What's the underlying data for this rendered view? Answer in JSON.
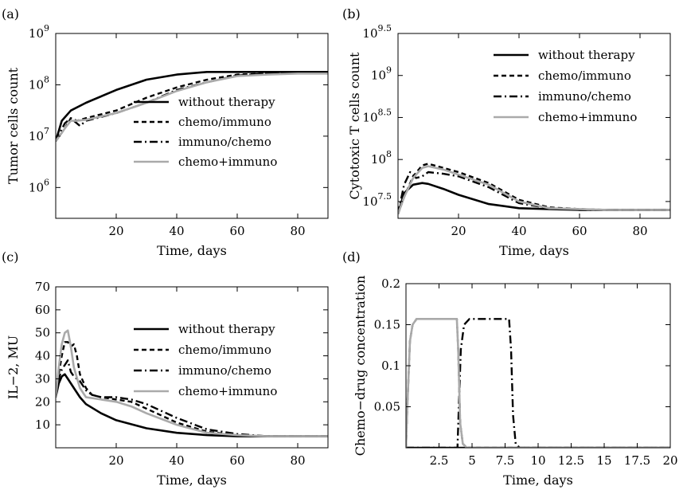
{
  "series_styles": [
    {
      "key": "without",
      "color": "#000000",
      "dash": "",
      "width": 2.6
    },
    {
      "key": "chemo_immuno",
      "color": "#000000",
      "dash": "6,4",
      "width": 2.4
    },
    {
      "key": "immuno_chemo",
      "color": "#000000",
      "dash": "10,4,2,4",
      "width": 2.4
    },
    {
      "key": "chemo_plus_immuno",
      "color": "#aaaaaa",
      "dash": "",
      "width": 2.6
    }
  ],
  "chart_data": [
    {
      "panel_label": "(a)",
      "type": "line",
      "yscale": "log",
      "xlabel": "Time, days",
      "ylabel": "Tumor cells count",
      "xlim": [
        0,
        90
      ],
      "ylim_log10": [
        5.4,
        9
      ],
      "xticks": [
        {
          "v": 20,
          "label": "20"
        },
        {
          "v": 40,
          "label": "40"
        },
        {
          "v": 60,
          "label": "60"
        },
        {
          "v": 80,
          "label": "80"
        }
      ],
      "yticks": [
        {
          "v": 6,
          "base": "10",
          "exp": "6"
        },
        {
          "v": 7,
          "base": "10",
          "exp": "7"
        },
        {
          "v": 8,
          "base": "10",
          "exp": "8"
        },
        {
          "v": 9,
          "base": "10",
          "exp": "9"
        }
      ],
      "legend": [
        "without therapy",
        "chemo/immuno",
        "immuno/chemo",
        "chemo+immuno"
      ],
      "legend_position": "bottom-right",
      "series": [
        {
          "name": "without therapy",
          "x": [
            0,
            2,
            5,
            10,
            20,
            30,
            40,
            50,
            60,
            70,
            80,
            90
          ],
          "y_log10": [
            6.9,
            7.3,
            7.5,
            7.65,
            7.9,
            8.1,
            8.2,
            8.25,
            8.25,
            8.25,
            8.25,
            8.25
          ]
        },
        {
          "name": "chemo/immuno",
          "x": [
            0,
            3,
            5,
            7,
            10,
            20,
            30,
            40,
            50,
            60,
            70,
            80,
            90
          ],
          "y_log10": [
            6.9,
            7.15,
            7.35,
            7.3,
            7.35,
            7.5,
            7.75,
            7.95,
            8.1,
            8.2,
            8.22,
            8.22,
            8.22
          ]
        },
        {
          "name": "immuno/chemo",
          "x": [
            0,
            3,
            5,
            7,
            8,
            10,
            20,
            30,
            40,
            50,
            60,
            70,
            80,
            90
          ],
          "y_log10": [
            6.9,
            7.25,
            7.35,
            7.25,
            7.2,
            7.3,
            7.45,
            7.65,
            7.9,
            8.05,
            8.18,
            8.22,
            8.22,
            8.22
          ]
        },
        {
          "name": "chemo+immuno",
          "x": [
            0,
            3,
            5,
            7,
            10,
            20,
            30,
            40,
            50,
            60,
            70,
            80,
            90
          ],
          "y_log10": [
            6.9,
            7.15,
            7.3,
            7.3,
            7.32,
            7.45,
            7.65,
            7.88,
            8.05,
            8.17,
            8.2,
            8.22,
            8.22
          ]
        }
      ]
    },
    {
      "panel_label": "(b)",
      "type": "line",
      "yscale": "log",
      "xlabel": "Time, days",
      "ylabel": "Cytotoxic T cells count",
      "xlim": [
        0,
        90
      ],
      "ylim_log10": [
        7.3,
        9.5
      ],
      "xticks": [
        {
          "v": 20,
          "label": "20"
        },
        {
          "v": 40,
          "label": "40"
        },
        {
          "v": 60,
          "label": "60"
        },
        {
          "v": 80,
          "label": "80"
        }
      ],
      "yticks": [
        {
          "v": 7.5,
          "base": "10",
          "exp": "7.5"
        },
        {
          "v": 8,
          "base": "10",
          "exp": "8"
        },
        {
          "v": 8.5,
          "base": "10",
          "exp": "8.5"
        },
        {
          "v": 9,
          "base": "10",
          "exp": "9"
        },
        {
          "v": 9.5,
          "base": "10",
          "exp": "9.5"
        }
      ],
      "legend": [
        "without therapy",
        "chemo/immuno",
        "immuno/chemo",
        "chemo+immuno"
      ],
      "legend_position": "top-right",
      "series": [
        {
          "name": "without therapy",
          "x": [
            0,
            2,
            5,
            8,
            10,
            15,
            20,
            30,
            40,
            50,
            60,
            70,
            80,
            90
          ],
          "y_log10": [
            7.35,
            7.6,
            7.7,
            7.72,
            7.71,
            7.65,
            7.58,
            7.47,
            7.42,
            7.41,
            7.4,
            7.4,
            7.4,
            7.4
          ]
        },
        {
          "name": "chemo/immuno",
          "x": [
            0,
            2,
            5,
            8,
            10,
            15,
            20,
            30,
            40,
            50,
            60,
            70,
            80,
            90
          ],
          "y_log10": [
            7.35,
            7.55,
            7.8,
            7.93,
            7.95,
            7.9,
            7.85,
            7.72,
            7.52,
            7.43,
            7.41,
            7.4,
            7.4,
            7.4
          ]
        },
        {
          "name": "immuno/chemo",
          "x": [
            0,
            2,
            4,
            6,
            8,
            10,
            15,
            20,
            30,
            40,
            50,
            60,
            70,
            80,
            90
          ],
          "y_log10": [
            7.35,
            7.7,
            7.85,
            7.78,
            7.8,
            7.85,
            7.83,
            7.8,
            7.67,
            7.48,
            7.42,
            7.4,
            7.4,
            7.4,
            7.4
          ]
        },
        {
          "name": "chemo+immuno",
          "x": [
            0,
            2,
            5,
            8,
            10,
            15,
            20,
            30,
            40,
            50,
            60,
            70,
            80,
            90
          ],
          "y_log10": [
            7.35,
            7.55,
            7.78,
            7.9,
            7.92,
            7.88,
            7.82,
            7.7,
            7.5,
            7.42,
            7.41,
            7.4,
            7.4,
            7.4
          ]
        }
      ]
    },
    {
      "panel_label": "(c)",
      "type": "line",
      "yscale": "linear",
      "xlabel": "Time, days",
      "ylabel": "IL−2, MU",
      "xlim": [
        0,
        90
      ],
      "ylim": [
        0,
        70
      ],
      "xticks": [
        {
          "v": 20,
          "label": "20"
        },
        {
          "v": 40,
          "label": "40"
        },
        {
          "v": 60,
          "label": "60"
        },
        {
          "v": 80,
          "label": "80"
        }
      ],
      "yticks": [
        {
          "v": 10,
          "label": "10"
        },
        {
          "v": 20,
          "label": "20"
        },
        {
          "v": 30,
          "label": "30"
        },
        {
          "v": 40,
          "label": "40"
        },
        {
          "v": 50,
          "label": "50"
        },
        {
          "v": 60,
          "label": "60"
        },
        {
          "v": 70,
          "label": "70"
        }
      ],
      "legend": [
        "without therapy",
        "chemo/immuno",
        "immuno/chemo",
        "chemo+immuno"
      ],
      "legend_position": "right",
      "series": [
        {
          "name": "without therapy",
          "x": [
            0,
            1,
            2,
            3,
            4,
            6,
            8,
            10,
            15,
            20,
            30,
            40,
            50,
            60,
            70,
            80,
            90
          ],
          "y": [
            22,
            28,
            31,
            32,
            30,
            26,
            22,
            19,
            15,
            12,
            8.5,
            6.5,
            5.5,
            5,
            5,
            5,
            5
          ]
        },
        {
          "name": "chemo/immuno",
          "x": [
            0,
            1,
            2,
            3,
            4,
            5,
            6,
            7,
            8,
            10,
            12,
            15,
            20,
            25,
            30,
            40,
            50,
            60,
            70,
            80,
            90
          ],
          "y": [
            22,
            32,
            40,
            46,
            46,
            44,
            45,
            40,
            32,
            26,
            23,
            22,
            21,
            20,
            17,
            11,
            7,
            5.5,
            5,
            5,
            5
          ]
        },
        {
          "name": "immuno/chemo",
          "x": [
            0,
            1,
            2,
            3,
            4,
            5,
            6,
            8,
            10,
            12,
            15,
            20,
            25,
            30,
            40,
            50,
            60,
            70,
            80,
            90
          ],
          "y": [
            22,
            30,
            34,
            36,
            38,
            33,
            31,
            29,
            25,
            23,
            22,
            22,
            21,
            19,
            13,
            8,
            6,
            5,
            5,
            5
          ]
        },
        {
          "name": "chemo+immuno",
          "x": [
            0,
            1,
            2,
            3,
            4,
            5,
            6,
            8,
            10,
            15,
            20,
            25,
            30,
            40,
            50,
            60,
            70,
            80,
            90
          ],
          "y": [
            22,
            35,
            45,
            50,
            51,
            44,
            35,
            26,
            22,
            21,
            20,
            18,
            15,
            10,
            6.5,
            5.5,
            5,
            5,
            5
          ]
        }
      ]
    },
    {
      "panel_label": "(d)",
      "type": "line",
      "yscale": "linear",
      "xlabel": "Time, days",
      "ylabel": "Chemo−drug concentration",
      "xlim": [
        0,
        20
      ],
      "ylim": [
        0,
        0.2
      ],
      "xticks": [
        {
          "v": 2.5,
          "label": "2.5"
        },
        {
          "v": 5,
          "label": "5"
        },
        {
          "v": 7.5,
          "label": "7.5"
        },
        {
          "v": 10,
          "label": "10"
        },
        {
          "v": 12.5,
          "label": "12.5"
        },
        {
          "v": 15,
          "label": "15"
        },
        {
          "v": 17.5,
          "label": "17.5"
        },
        {
          "v": 20,
          "label": "20"
        }
      ],
      "yticks": [
        {
          "v": 0.05,
          "label": "0.05"
        },
        {
          "v": 0.1,
          "label": "0.1"
        },
        {
          "v": 0.15,
          "label": "0.15"
        },
        {
          "v": 0.2,
          "label": "0.2"
        }
      ],
      "legend": [],
      "series": [
        {
          "name": "without therapy",
          "x": [
            0,
            20
          ],
          "y": [
            0,
            0
          ]
        },
        {
          "name": "chemo/immuno",
          "x": [
            0,
            0.1,
            0.3,
            0.5,
            0.8,
            3.85,
            3.95,
            4.1,
            4.3,
            4.6,
            20
          ],
          "y": [
            0,
            0.05,
            0.13,
            0.15,
            0.157,
            0.157,
            0.12,
            0.03,
            0.005,
            0,
            0
          ]
        },
        {
          "name": "immuno/chemo",
          "x": [
            0,
            3.9,
            4.0,
            4.15,
            4.4,
            4.8,
            7.8,
            7.95,
            8.1,
            8.3,
            8.6,
            20
          ],
          "y": [
            0,
            0,
            0.05,
            0.12,
            0.15,
            0.157,
            0.157,
            0.12,
            0.04,
            0.005,
            0,
            0
          ]
        },
        {
          "name": "chemo+immuno",
          "x": [
            0,
            0.1,
            0.3,
            0.5,
            0.8,
            3.85,
            3.95,
            4.1,
            4.3,
            4.6,
            20
          ],
          "y": [
            0,
            0.05,
            0.13,
            0.15,
            0.157,
            0.157,
            0.12,
            0.03,
            0.005,
            0,
            0
          ]
        }
      ]
    }
  ]
}
